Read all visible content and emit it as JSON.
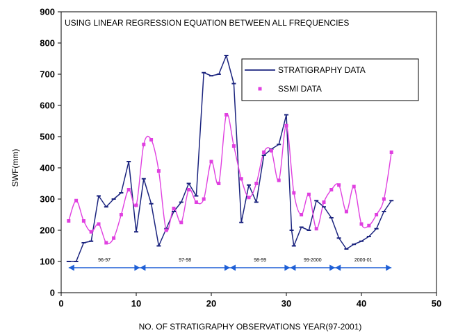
{
  "chart_data": {
    "type": "line",
    "title": "USING LINEAR REGRESSION EQUATION BETWEEN ALL FREQUENCIES",
    "xlabel": "NO. OF STRATIGRAPHY OBSERVATIONS YEAR(97-2001)",
    "ylabel": "SWF(mm)",
    "xlim": [
      0,
      50
    ],
    "ylim": [
      0,
      900
    ],
    "xticks": [
      "0",
      "10",
      "20",
      "30",
      "40",
      "50"
    ],
    "yticks": [
      "0",
      "100",
      "200",
      "300",
      "400",
      "500",
      "600",
      "700",
      "800",
      "900"
    ],
    "grid": false,
    "legend_position": "top-right",
    "series": [
      {
        "name": "STRATIGRAPHY DATA",
        "color": "#1a237e",
        "marker": "dash",
        "points": [
          [
            1,
            100
          ],
          [
            2,
            100
          ],
          [
            3,
            160
          ],
          [
            4,
            165
          ],
          [
            5,
            310
          ],
          [
            6,
            275
          ],
          [
            7,
            300
          ],
          [
            8,
            320
          ],
          [
            9,
            420
          ],
          [
            10,
            195
          ],
          [
            11,
            365
          ],
          [
            12,
            285
          ],
          [
            13,
            150
          ],
          [
            14,
            205
          ],
          [
            15,
            260
          ],
          [
            16,
            290
          ],
          [
            17,
            350
          ],
          [
            18,
            310
          ],
          [
            19,
            705
          ],
          [
            20,
            695
          ],
          [
            21,
            700
          ],
          [
            22,
            760
          ],
          [
            23,
            670
          ],
          [
            24,
            225
          ],
          [
            25,
            345
          ],
          [
            26,
            290
          ],
          [
            27,
            440
          ],
          [
            28,
            460
          ],
          [
            29,
            475
          ],
          [
            30,
            570
          ],
          [
            30.7,
            200
          ],
          [
            31,
            150
          ],
          [
            32,
            210
          ],
          [
            33,
            200
          ],
          [
            34,
            295
          ],
          [
            35,
            275
          ],
          [
            36,
            240
          ],
          [
            37,
            175
          ],
          [
            38,
            140
          ],
          [
            39,
            155
          ],
          [
            40,
            165
          ],
          [
            41,
            180
          ],
          [
            42,
            205
          ],
          [
            43,
            260
          ],
          [
            44,
            295
          ]
        ]
      },
      {
        "name": "SSMI DATA",
        "color": "#e040e0",
        "marker": "square",
        "points": [
          [
            1,
            230
          ],
          [
            2,
            295
          ],
          [
            3,
            230
          ],
          [
            4,
            195
          ],
          [
            5,
            220
          ],
          [
            6,
            160
          ],
          [
            7,
            175
          ],
          [
            8,
            250
          ],
          [
            9,
            330
          ],
          [
            10,
            280
          ],
          [
            11,
            475
          ],
          [
            12,
            490
          ],
          [
            13,
            390
          ],
          [
            14,
            200
          ],
          [
            15,
            270
          ],
          [
            16,
            225
          ],
          [
            17,
            330
          ],
          [
            18,
            290
          ],
          [
            19,
            300
          ],
          [
            20,
            420
          ],
          [
            21,
            350
          ],
          [
            22,
            570
          ],
          [
            23,
            470
          ],
          [
            24,
            365
          ],
          [
            25,
            305
          ],
          [
            26,
            350
          ],
          [
            27,
            450
          ],
          [
            28,
            455
          ],
          [
            29,
            360
          ],
          [
            30,
            535
          ],
          [
            31,
            320
          ],
          [
            32,
            250
          ],
          [
            33,
            315
          ],
          [
            34,
            205
          ],
          [
            35,
            290
          ],
          [
            36,
            330
          ],
          [
            37,
            345
          ],
          [
            38,
            260
          ],
          [
            39,
            340
          ],
          [
            40,
            220
          ],
          [
            41,
            215
          ],
          [
            42,
            250
          ],
          [
            43,
            300
          ],
          [
            44,
            450
          ]
        ]
      }
    ],
    "periods": [
      {
        "label": "96-97",
        "x_start": 1,
        "x_end": 10.5
      },
      {
        "label": "97-98",
        "x_start": 10.5,
        "x_end": 22.5
      },
      {
        "label": "98-99",
        "x_start": 22.5,
        "x_end": 30.5
      },
      {
        "label": "99-2000",
        "x_start": 30.5,
        "x_end": 36.5
      },
      {
        "label": "2000-01",
        "x_start": 36.5,
        "x_end": 44
      }
    ],
    "period_arrow_y": 80,
    "period_arrow_color": "#1e5fd6"
  }
}
